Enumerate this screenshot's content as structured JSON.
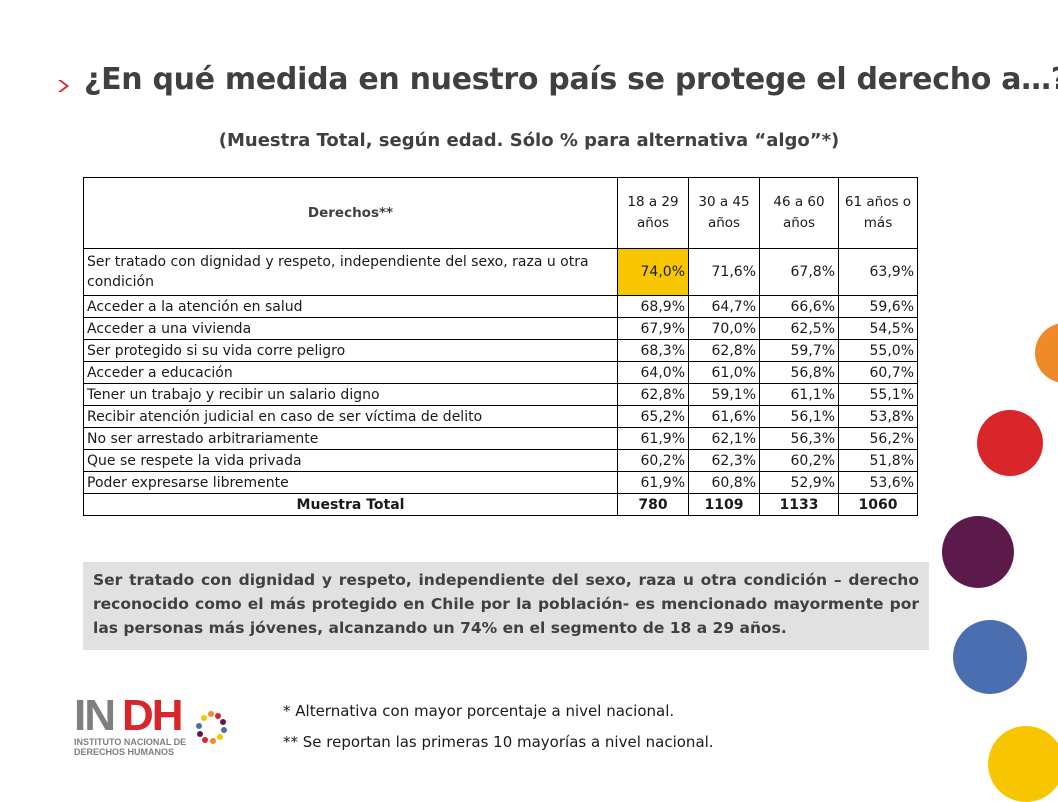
{
  "title": "¿En qué medida en nuestro país se protege el derecho a…?",
  "subtitle": "(Muestra Total, según edad. Sólo % para alternativa “algo”*)",
  "table": {
    "header": {
      "label": "Derechos**",
      "columns": [
        "18 a 29 años",
        "30 a 45 años",
        "46 a 60 años",
        "61 años o más"
      ]
    },
    "rows": [
      {
        "label": "Ser tratado con dignidad y respeto, independiente del sexo, raza u otra condición",
        "values": [
          "74,0%",
          "71,6%",
          "67,8%",
          "63,9%"
        ]
      },
      {
        "label": "Acceder a la atención en salud",
        "values": [
          "68,9%",
          "64,7%",
          "66,6%",
          "59,6%"
        ]
      },
      {
        "label": "Acceder a una vivienda",
        "values": [
          "67,9%",
          "70,0%",
          "62,5%",
          "54,5%"
        ]
      },
      {
        "label": "Ser protegido si su vida corre peligro",
        "values": [
          "68,3%",
          "62,8%",
          "59,7%",
          "55,0%"
        ]
      },
      {
        "label": "Acceder a educación",
        "values": [
          "64,0%",
          "61,0%",
          "56,8%",
          "60,7%"
        ]
      },
      {
        "label": "Tener un trabajo y recibir un salario digno",
        "values": [
          "62,8%",
          "59,1%",
          "61,1%",
          "55,1%"
        ]
      },
      {
        "label": "Recibir atención judicial en caso de ser víctima de delito",
        "values": [
          "65,2%",
          "61,6%",
          "56,1%",
          "53,8%"
        ]
      },
      {
        "label": "No ser arrestado arbitrariamente",
        "values": [
          "61,9%",
          "62,1%",
          "56,3%",
          "56,2%"
        ]
      },
      {
        "label": "Que se respete la vida privada",
        "values": [
          "60,2%",
          "62,3%",
          "60,2%",
          "51,8%"
        ]
      },
      {
        "label": "Poder expresarse libremente",
        "values": [
          "61,9%",
          "60,8%",
          "52,9%",
          "53,6%"
        ]
      }
    ],
    "total": {
      "label": "Muestra Total",
      "values": [
        "780",
        "1109",
        "1133",
        "1060"
      ]
    }
  },
  "note": "Ser tratado con dignidad y respeto, independiente del sexo, raza u otra condición – derecho reconocido como el más protegido en Chile por la población- es mencionado mayormente por las personas más jóvenes, alcanzando un 74% en el segmento de 18 a 29 años.",
  "footnotes": {
    "f1": "* Alternativa con mayor porcentaje a nivel nacional.",
    "f2": "** Se reportan las primeras 10 mayorías a nivel nacional."
  },
  "logo": {
    "name": "INDH",
    "line1": "INSTITUTO NACIONAL DE",
    "line2": "DERECHOS HUMANOS"
  },
  "colors": {
    "highlight": "#f7c600",
    "orange": "#ef8a2a",
    "red": "#d9262b",
    "purple": "#5b1a4a",
    "blue": "#4a6eb0",
    "yellow": "#f7c600"
  }
}
